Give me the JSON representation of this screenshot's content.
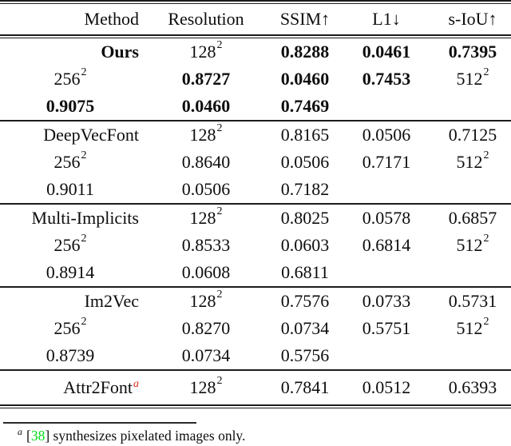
{
  "colors": {
    "text": "#0d0d0d",
    "rule": "#1c1c1c",
    "marker_red": "#e8261f",
    "citation_green": "#00dc14",
    "background": "#ffffff"
  },
  "table": {
    "resolution_exponent": "2",
    "headers": {
      "method": "Method",
      "resolution": "Resolution",
      "ssim": "SSIM↑",
      "l1": "L1↓",
      "siou": "s-IoU↑"
    },
    "sections": [
      {
        "method": "Ours",
        "rows": [
          {
            "resolution": "128",
            "ssim": "0.8288",
            "l1": "0.0461",
            "siou": "0.7395"
          },
          {
            "resolution": "256",
            "ssim": "0.8727",
            "l1": "0.0460",
            "siou": "0.7453"
          },
          {
            "resolution": "512",
            "ssim": "0.9075",
            "l1": "0.0460",
            "siou": "0.7469"
          }
        ]
      },
      {
        "method": "DeepVecFont",
        "rows": [
          {
            "resolution": "128",
            "ssim": "0.8165",
            "l1": "0.0506",
            "siou": "0.7125"
          },
          {
            "resolution": "256",
            "ssim": "0.8640",
            "l1": "0.0506",
            "siou": "0.7171"
          },
          {
            "resolution": "512",
            "ssim": "0.9011",
            "l1": "0.0506",
            "siou": "0.7182"
          }
        ]
      },
      {
        "method": "Multi-Implicits",
        "rows": [
          {
            "resolution": "128",
            "ssim": "0.8025",
            "l1": "0.0578",
            "siou": "0.6857"
          },
          {
            "resolution": "256",
            "ssim": "0.8533",
            "l1": "0.0603",
            "siou": "0.6814"
          },
          {
            "resolution": "512",
            "ssim": "0.8914",
            "l1": "0.0608",
            "siou": "0.6811"
          }
        ]
      },
      {
        "method": "Im2Vec",
        "rows": [
          {
            "resolution": "128",
            "ssim": "0.7576",
            "l1": "0.0733",
            "siou": "0.5731"
          },
          {
            "resolution": "256",
            "ssim": "0.8270",
            "l1": "0.0734",
            "siou": "0.5751"
          },
          {
            "resolution": "512",
            "ssim": "0.8739",
            "l1": "0.0734",
            "siou": "0.5756"
          }
        ]
      },
      {
        "method": "Attr2Font",
        "method_superscript": "a",
        "rows": [
          {
            "resolution": "128",
            "ssim": "0.7841",
            "l1": "0.0512",
            "siou": "0.6393"
          }
        ]
      }
    ]
  },
  "footnote": {
    "marker": "a",
    "bracket_open": "[",
    "citation": "38",
    "bracket_close": "]",
    "text": " synthesizes pixelated images only."
  }
}
